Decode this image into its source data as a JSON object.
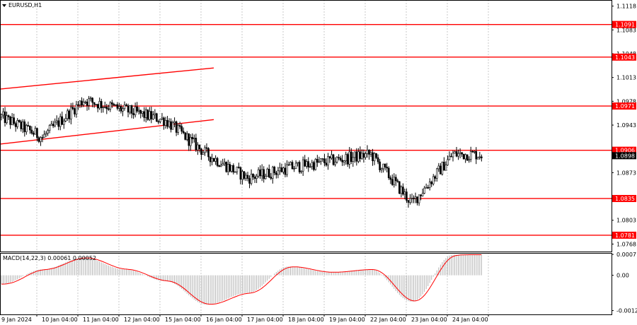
{
  "window": {
    "symbol_title": "EURUSD,H1"
  },
  "colors": {
    "background": "#ffffff",
    "grid": "#c8c8c8",
    "candle": "#000000",
    "level_line": "#ff0000",
    "level_label_bg": "#ff0000",
    "current_price_bg": "#000000",
    "macd_hist": "#b4b4b4",
    "macd_signal": "#ff0000"
  },
  "chart_data": {
    "type": "candlestick",
    "symbol": "EURUSD",
    "timeframe": "H1",
    "x_labels": [
      "9 Jan 2024",
      "10 Jan 04:00",
      "11 Jan 04:00",
      "12 Jan 04:00",
      "15 Jan 04:00",
      "16 Jan 04:00",
      "17 Jan 04:00",
      "18 Jan 04:00",
      "19 Jan 04:00",
      "22 Jan 04:00",
      "23 Jan 04:00",
      "24 Jan 04:00"
    ],
    "price_axis_ticks": [
      "1.1118",
      "1.1083",
      "1.1048",
      "1.1013",
      "1.0978",
      "1.0943",
      "1.0873",
      "1.0803",
      "1.0768"
    ],
    "price_range": [
      1.0757,
      1.1127
    ],
    "horizontal_levels": [
      {
        "value": 1.1091,
        "label": "1.1091"
      },
      {
        "value": 1.1043,
        "label": "1.1043"
      },
      {
        "value": 1.0971,
        "label": "1.0971"
      },
      {
        "value": 1.0906,
        "label": "1.0906"
      },
      {
        "value": 1.0835,
        "label": "1.0835"
      },
      {
        "value": 1.0781,
        "label": "1.0781"
      }
    ],
    "current_price": {
      "value": 1.0898,
      "label": "1.0898"
    },
    "trend_channel": {
      "upper": {
        "from": {
          "date": "9 Jan 2024",
          "price": 1.0996
        },
        "to": {
          "date": "16 Jan 2024",
          "price": 1.1027
        }
      },
      "lower": {
        "from": {
          "date": "9 Jan 2024",
          "price": 1.0915
        },
        "to": {
          "date": "16 Jan 2024",
          "price": 1.0951
        }
      }
    },
    "price_path_approx": [
      {
        "date": "9 Jan",
        "price": 1.0955
      },
      {
        "date": "10 Jan",
        "price": 1.0925
      },
      {
        "date": "11 Jan",
        "price": 1.098
      },
      {
        "date": "12 Jan",
        "price": 1.0965
      },
      {
        "date": "15 Jan",
        "price": 1.095
      },
      {
        "date": "16 Jan",
        "price": 1.09
      },
      {
        "date": "17 Jan",
        "price": 1.0865
      },
      {
        "date": "18 Jan",
        "price": 1.088
      },
      {
        "date": "19 Jan",
        "price": 1.089
      },
      {
        "date": "22 Jan",
        "price": 1.09
      },
      {
        "date": "23 Jan",
        "price": 1.0828
      },
      {
        "date": "24 Jan",
        "price": 1.09
      }
    ],
    "macd": {
      "title": "MACD(14,22,3) 0.00061 0.00052",
      "params": [
        14,
        22,
        3
      ],
      "main_value": 0.00061,
      "signal_value": 0.00052,
      "axis_ticks": [
        "0.00071",
        "0.00",
        "-0.0012"
      ],
      "range": [
        -0.00133,
        0.00076
      ],
      "histogram_path_approx": [
        {
          "date": "9 Jan",
          "value": -0.0003
        },
        {
          "date": "10 Jan",
          "value": 0.0002
        },
        {
          "date": "11 Jan",
          "value": 0.0006
        },
        {
          "date": "12 Jan",
          "value": 0.0002
        },
        {
          "date": "15 Jan",
          "value": -0.0002
        },
        {
          "date": "16 Jan",
          "value": -0.001
        },
        {
          "date": "17 Jan",
          "value": -0.0006
        },
        {
          "date": "18 Jan",
          "value": 0.0003
        },
        {
          "date": "19 Jan",
          "value": 0.0001
        },
        {
          "date": "22 Jan",
          "value": 0.0002
        },
        {
          "date": "23 Jan",
          "value": -0.0009
        },
        {
          "date": "24 Jan",
          "value": 0.0007
        }
      ]
    }
  }
}
